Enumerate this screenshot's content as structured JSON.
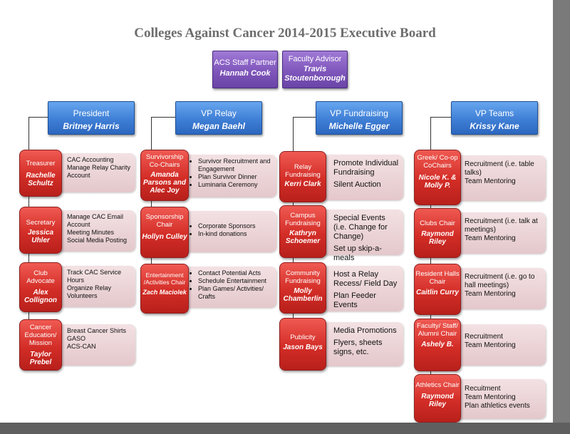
{
  "title": "Colleges Against Cancer 2014-2015 Executive Board",
  "advisors": [
    {
      "role": "ACS Staff Partner",
      "name": "Hannah Cook"
    },
    {
      "role": "Faculty Advisor",
      "name": "Travis Stoutenborough"
    }
  ],
  "columns": [
    {
      "vp_role": "President",
      "vp_name": "Britney Harris",
      "chairs": [
        {
          "role": "Treasurer",
          "name": "Rachelle Schultz",
          "duties": [
            "CAC Accounting",
            "Manage Relay Charity Account"
          ]
        },
        {
          "role": "Secretary",
          "name": "Jessica Uhler",
          "duties": [
            "Manage CAC Email Account",
            "Meeting Minutes",
            "Social Media Posting"
          ]
        },
        {
          "role": "Club Advocate",
          "name": "Alex Collignon",
          "duties": [
            "Track CAC Service Hours",
            "Organize Relay Volunteers"
          ]
        },
        {
          "role": "Cancer Education/ Mission",
          "name": "Taylor Prebel",
          "duties": [
            "Breast Cancer Shirts",
            "GASO",
            "ACS-CAN"
          ]
        }
      ]
    },
    {
      "vp_role": "VP Relay",
      "vp_name": "Megan Baehl",
      "chairs": [
        {
          "role": "Survivorship Co-Chairs",
          "name": "Amanda Parsons and Alec Joy",
          "duties": [
            "Survivor Recruitment and Engagement",
            "Plan Survivor Dinner",
            "Luminaria Ceremony"
          ]
        },
        {
          "role": "Sponsorship Chair",
          "name": "Hollyn Culley",
          "duties": [
            "Corporate Sponsors",
            "In-kind donations"
          ]
        },
        {
          "role": "Entertainment /Activities Chair",
          "name": "Zach Maciolek",
          "duties": [
            "Contact Potential Acts",
            "Schedule Entertainment",
            "Plan Games/ Activities/ Crafts"
          ]
        }
      ]
    },
    {
      "vp_role": "VP Fundraising",
      "vp_name": "Michelle Egger",
      "chairs": [
        {
          "role": "Relay Fundraising",
          "name": "Kerri Clark",
          "duties": [
            "Promote Individual Fundraising",
            "Silent Auction"
          ]
        },
        {
          "role": "Campus Fundraising",
          "name": "Kathryn Schoemer",
          "duties": [
            "Special Events (i.e. Change for Change)",
            "Set up skip-a-meals"
          ]
        },
        {
          "role": "Community Fundraising",
          "name": "Molly Chamberlin",
          "duties": [
            "Host a Relay Recess/ Field Day",
            "Plan Feeder Events"
          ]
        },
        {
          "role": "Publicity",
          "name": "Jason Bays",
          "duties": [
            "Media Promotions",
            "Flyers, sheets signs, etc."
          ]
        }
      ]
    },
    {
      "vp_role": "VP Teams",
      "vp_name": "Krissy Kane",
      "chairs": [
        {
          "role": "Greek/ Co-op CoChairs",
          "name": "Nicole K. & Molly P.",
          "duties": [
            "Recruitment (i.e. table talks)",
            "Team Mentoring"
          ]
        },
        {
          "role": "Clubs Chair",
          "name": "Raymond Riley",
          "duties": [
            "Recruitment (i.e. talk at meetings)",
            "Team Mentoring"
          ]
        },
        {
          "role": "Resident Halls Chair",
          "name": "Caitlin Curry",
          "duties": [
            "Recruitment (i.e. go to hall meetings)",
            "Team Mentoring"
          ]
        },
        {
          "role": "Faculty/ Staff/ Alumni Chair",
          "name": "Ashely B.",
          "duties": [
            "Recruitment",
            "Team Mentoring"
          ]
        },
        {
          "role": "Athletics Chair",
          "name": "Raymond Riley",
          "duties": [
            "Recuitment",
            "Team Mentoring",
            "Plan athletics events"
          ]
        }
      ]
    }
  ]
}
